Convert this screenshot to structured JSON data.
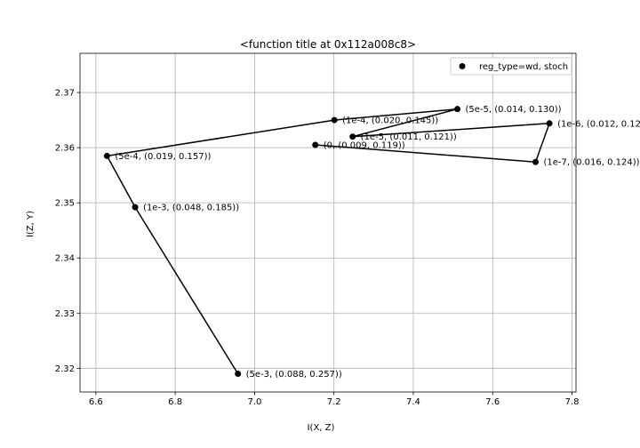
{
  "chart_data": {
    "type": "scatter",
    "title": "<function title at 0x112a008c8>",
    "xlabel": "I(X, Z)",
    "ylabel": "I(Z, Y)",
    "xlim": [
      6.56,
      7.81
    ],
    "ylim": [
      2.3157,
      2.3771
    ],
    "xticks": [
      "6.6",
      "6.8",
      "7.0",
      "7.2",
      "7.4",
      "7.6",
      "7.8"
    ],
    "yticks": [
      "2.32",
      "2.33",
      "2.34",
      "2.35",
      "2.36",
      "2.37"
    ],
    "grid": true,
    "legend": {
      "position": "top-right",
      "entries": [
        "reg_type=wd, stoch"
      ]
    },
    "series": [
      {
        "name": "reg_type=wd, stoch",
        "points": [
          {
            "x": 7.153,
            "y": 2.3605,
            "label": "(0, (0.009, 0.119))"
          },
          {
            "x": 7.708,
            "y": 2.3574,
            "label": "(1e-7, (0.016, 0.124))"
          },
          {
            "x": 7.743,
            "y": 2.3644,
            "label": "(1e-6, (0.012, 0.12"
          },
          {
            "x": 7.247,
            "y": 2.362,
            "label": "(1e-5, (0.011, 0.121))"
          },
          {
            "x": 7.511,
            "y": 2.367,
            "label": "(5e-5, (0.014, 0.130))"
          },
          {
            "x": 7.201,
            "y": 2.365,
            "label": "(1e-4, (0.020, 0.145))"
          },
          {
            "x": 6.628,
            "y": 2.3585,
            "label": "(5e-4, (0.019, 0.157))"
          },
          {
            "x": 6.699,
            "y": 2.3492,
            "label": "(1e-3, (0.048, 0.185))"
          },
          {
            "x": 6.958,
            "y": 2.319,
            "label": "(5e-3, (0.088, 0.257))"
          }
        ]
      }
    ]
  }
}
